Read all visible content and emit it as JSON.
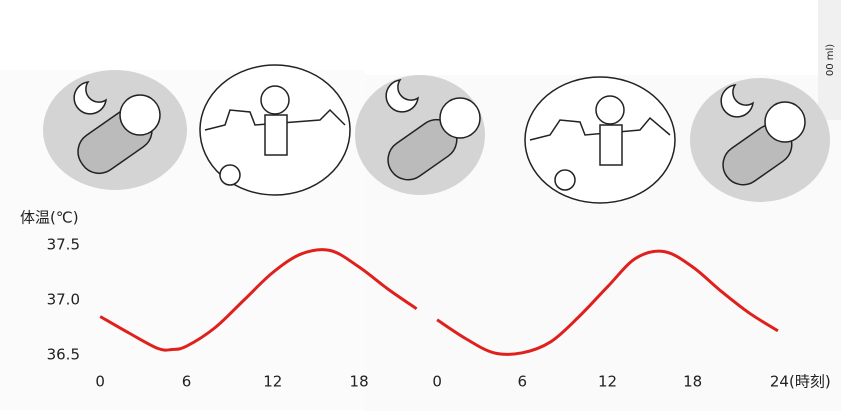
{
  "chart_data": [
    {
      "type": "line",
      "ylabel": "体温(℃)",
      "ylim": [
        36.5,
        37.5
      ],
      "yticks": [
        36.5,
        {
          "value": 37,
          "label": "37.0"
        },
        37.5
      ],
      "xlim": [
        -0.5,
        23
      ],
      "xticks": [
        0,
        6,
        12,
        18
      ],
      "x": [
        0,
        2,
        4,
        5,
        6,
        8,
        10,
        12,
        14,
        16,
        18,
        20,
        22
      ],
      "series": [
        {
          "color": "#e0201c",
          "values": [
            36.85,
            36.7,
            36.56,
            36.55,
            36.58,
            36.75,
            37.0,
            37.25,
            37.42,
            37.45,
            37.3,
            37.1,
            36.92
          ]
        }
      ]
    },
    {
      "type": "line",
      "ylim": [
        36.5,
        37.5
      ],
      "xlim": [
        -0.5,
        24.5
      ],
      "xticks": [
        0,
        6,
        12,
        18,
        {
          "value": 24,
          "label": "24(時刻)"
        }
      ],
      "x": [
        0,
        2,
        4,
        6,
        8,
        10,
        12,
        14,
        16,
        18,
        20,
        22,
        24
      ],
      "series": [
        {
          "color": "#e0201c",
          "values": [
            36.82,
            36.65,
            36.52,
            36.52,
            36.62,
            36.85,
            37.12,
            37.38,
            37.44,
            37.3,
            37.08,
            36.88,
            36.72
          ]
        }
      ]
    }
  ],
  "edge_text": "00 ml)"
}
